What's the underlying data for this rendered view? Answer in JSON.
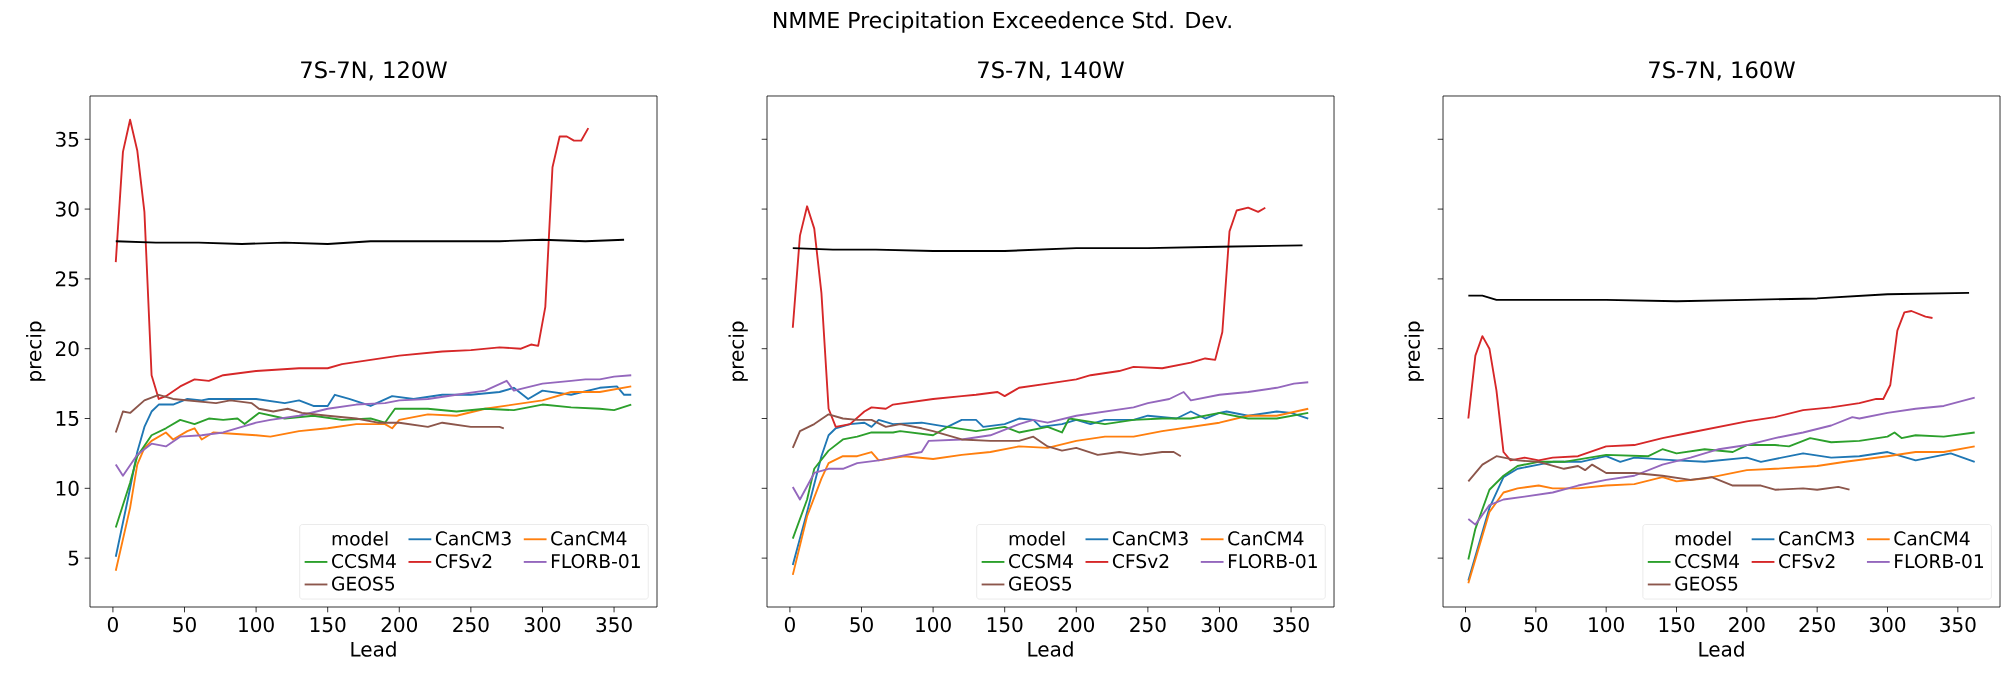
{
  "chart_data": [
    {
      "type": "other",
      "title": "NMME Precipitation Exceedence Std. Dev."
    },
    {
      "type": "line",
      "title": "7S-7N, 120W",
      "xlabel": "Lead",
      "ylabel": "precip",
      "legend_title": "model",
      "legend": "bottom right",
      "xlim": [
        -16,
        380
      ],
      "ylim": [
        1.5,
        38.1
      ],
      "xticks": [
        0,
        50,
        100,
        150,
        200,
        250,
        300,
        350
      ],
      "yticks": [
        5,
        10,
        15,
        20,
        25,
        30,
        35
      ],
      "series": [
        {
          "name": "CanCM3",
          "color": "#1f77b4",
          "x": [
            2,
            11,
            17,
            22,
            27,
            32,
            42,
            52,
            62,
            67,
            100,
            120,
            130,
            140,
            150,
            155,
            165,
            180,
            195,
            210,
            230,
            250,
            270,
            280,
            290,
            300,
            320,
            340,
            352,
            357,
            362
          ],
          "values": [
            5.1,
            9.5,
            12.6,
            14.4,
            15.5,
            16.0,
            16.0,
            16.4,
            16.3,
            16.4,
            16.4,
            16.1,
            16.3,
            15.9,
            15.9,
            16.7,
            16.4,
            15.9,
            16.6,
            16.4,
            16.7,
            16.7,
            16.9,
            17.2,
            16.4,
            17.0,
            16.7,
            17.2,
            17.3,
            16.7,
            16.7
          ]
        },
        {
          "name": "CanCM4",
          "color": "#ff7f0e",
          "x": [
            2,
            12,
            17,
            22,
            27,
            37,
            42,
            52,
            57,
            62,
            70,
            100,
            110,
            130,
            150,
            170,
            190,
            195,
            200,
            220,
            240,
            260,
            280,
            300,
            320,
            340,
            362
          ],
          "values": [
            4.1,
            8.6,
            11.7,
            12.9,
            13.4,
            14.0,
            13.5,
            14.1,
            14.3,
            13.5,
            14.0,
            13.8,
            13.7,
            14.1,
            14.3,
            14.6,
            14.6,
            14.3,
            14.9,
            15.3,
            15.2,
            15.7,
            16.0,
            16.3,
            16.9,
            16.9,
            17.3
          ]
        },
        {
          "name": "CCSM4",
          "color": "#2ca02c",
          "x": [
            2,
            12,
            17,
            27,
            37,
            47,
            57,
            67,
            77,
            87,
            92,
            102,
            120,
            140,
            160,
            180,
            190,
            197,
            220,
            240,
            260,
            280,
            300,
            320,
            340,
            350,
            362
          ],
          "values": [
            7.2,
            10.4,
            12.3,
            13.8,
            14.3,
            14.9,
            14.6,
            15.0,
            14.9,
            15.0,
            14.6,
            15.4,
            15.0,
            15.2,
            14.9,
            15.0,
            14.7,
            15.7,
            15.7,
            15.5,
            15.7,
            15.6,
            16.0,
            15.8,
            15.7,
            15.6,
            16.0
          ]
        },
        {
          "name": "CFSv2",
          "color": "#d62728",
          "x": [
            2,
            7,
            12,
            17,
            22,
            27,
            32,
            37,
            47,
            57,
            67,
            77,
            100,
            130,
            150,
            160,
            180,
            200,
            230,
            250,
            270,
            285,
            292,
            297,
            302,
            307,
            312,
            317,
            322,
            327,
            332
          ],
          "values": [
            26.2,
            34.1,
            36.4,
            34.2,
            29.8,
            18.1,
            16.4,
            16.6,
            17.3,
            17.8,
            17.7,
            18.1,
            18.4,
            18.6,
            18.6,
            18.9,
            19.2,
            19.5,
            19.8,
            19.9,
            20.1,
            20.0,
            20.3,
            20.2,
            23.0,
            33.0,
            35.2,
            35.2,
            34.9,
            34.9,
            35.8
          ]
        },
        {
          "name": "FLORB-01",
          "color": "#9467bd",
          "x": [
            2,
            7,
            17,
            27,
            37,
            47,
            62,
            77,
            90,
            100,
            110,
            130,
            150,
            170,
            190,
            200,
            220,
            240,
            260,
            275,
            280,
            300,
            320,
            330,
            340,
            350,
            362
          ],
          "values": [
            11.7,
            10.9,
            12.4,
            13.2,
            13.0,
            13.7,
            13.8,
            14.0,
            14.4,
            14.7,
            14.9,
            15.2,
            15.7,
            16.0,
            16.1,
            16.3,
            16.4,
            16.7,
            17.0,
            17.7,
            17.0,
            17.5,
            17.7,
            17.8,
            17.8,
            18.0,
            18.1
          ]
        },
        {
          "name": "GEOS5",
          "color": "#8c564b",
          "x": [
            2,
            7,
            12,
            22,
            32,
            42,
            52,
            72,
            82,
            97,
            102,
            112,
            122,
            132,
            150,
            170,
            185,
            200,
            220,
            230,
            250,
            270,
            273
          ],
          "values": [
            14.0,
            15.5,
            15.4,
            16.3,
            16.7,
            16.4,
            16.3,
            16.1,
            16.3,
            16.1,
            15.7,
            15.5,
            15.7,
            15.4,
            15.2,
            15.0,
            14.7,
            14.7,
            14.4,
            14.7,
            14.4,
            14.4,
            14.3
          ]
        },
        {
          "color": "#000000",
          "x": [
            2,
            30,
            60,
            90,
            120,
            150,
            180,
            210,
            240,
            270,
            300,
            330,
            357
          ],
          "values": [
            27.7,
            27.6,
            27.6,
            27.5,
            27.6,
            27.5,
            27.7,
            27.7,
            27.7,
            27.7,
            27.8,
            27.7,
            27.8
          ]
        }
      ]
    },
    {
      "type": "line",
      "title": "7S-7N, 140W",
      "xlabel": "Lead",
      "ylabel": "precip",
      "legend_title": "model",
      "legend": "bottom right",
      "tick_labels": "x",
      "xlim": [
        -16,
        380
      ],
      "ylim": [
        1.5,
        38.1
      ],
      "xticks": [
        0,
        50,
        100,
        150,
        200,
        250,
        300,
        350
      ],
      "yticks": [
        5,
        10,
        15,
        20,
        25,
        30,
        35
      ],
      "series": [
        {
          "name": "CanCM3",
          "color": "#1f77b4",
          "x": [
            2,
            12,
            22,
            27,
            32,
            42,
            52,
            57,
            62,
            72,
            92,
            110,
            120,
            130,
            135,
            150,
            160,
            170,
            175,
            190,
            200,
            210,
            220,
            240,
            250,
            270,
            280,
            290,
            300,
            305,
            320,
            340,
            350,
            362
          ],
          "values": [
            4.5,
            8.3,
            12.3,
            13.8,
            14.3,
            14.6,
            14.7,
            14.4,
            14.9,
            14.6,
            14.7,
            14.4,
            14.9,
            14.9,
            14.4,
            14.6,
            15.0,
            14.9,
            14.4,
            14.6,
            14.9,
            14.6,
            14.9,
            14.9,
            15.2,
            15.0,
            15.5,
            15.0,
            15.4,
            15.5,
            15.2,
            15.5,
            15.4,
            15.0
          ]
        },
        {
          "name": "CanCM4",
          "color": "#ff7f0e",
          "x": [
            2,
            12,
            22,
            27,
            37,
            47,
            57,
            62,
            80,
            100,
            120,
            140,
            160,
            180,
            200,
            220,
            240,
            260,
            280,
            300,
            320,
            340,
            362
          ],
          "values": [
            3.8,
            8.0,
            10.7,
            11.8,
            12.3,
            12.3,
            12.6,
            12.0,
            12.3,
            12.1,
            12.4,
            12.6,
            13.0,
            12.9,
            13.4,
            13.7,
            13.7,
            14.1,
            14.4,
            14.7,
            15.2,
            15.2,
            15.7
          ]
        },
        {
          "name": "CCSM4",
          "color": "#2ca02c",
          "x": [
            2,
            12,
            17,
            27,
            37,
            47,
            57,
            72,
            77,
            100,
            110,
            130,
            150,
            160,
            180,
            190,
            195,
            220,
            240,
            260,
            280,
            300,
            320,
            340,
            362
          ],
          "values": [
            6.4,
            9.2,
            11.4,
            12.7,
            13.5,
            13.7,
            14.0,
            14.0,
            14.1,
            13.8,
            14.4,
            14.1,
            14.4,
            14.0,
            14.4,
            14.0,
            15.0,
            14.6,
            14.9,
            15.0,
            15.0,
            15.4,
            15.0,
            15.0,
            15.4
          ]
        },
        {
          "name": "CFSv2",
          "color": "#d62728",
          "x": [
            2,
            7,
            12,
            17,
            22,
            27,
            32,
            42,
            52,
            57,
            67,
            72,
            100,
            120,
            130,
            145,
            150,
            160,
            180,
            200,
            210,
            230,
            240,
            260,
            280,
            290,
            297,
            302,
            307,
            312,
            320,
            327,
            332
          ],
          "values": [
            21.5,
            28.1,
            30.2,
            28.6,
            24.0,
            15.7,
            14.4,
            14.6,
            15.5,
            15.8,
            15.7,
            16.0,
            16.4,
            16.6,
            16.7,
            16.9,
            16.6,
            17.2,
            17.5,
            17.8,
            18.1,
            18.4,
            18.7,
            18.6,
            19.0,
            19.3,
            19.2,
            21.2,
            28.4,
            29.9,
            30.1,
            29.8,
            30.1
          ]
        },
        {
          "name": "FLORB-01",
          "color": "#9467bd",
          "x": [
            2,
            7,
            17,
            27,
            37,
            47,
            62,
            77,
            92,
            97,
            120,
            140,
            160,
            170,
            180,
            200,
            220,
            240,
            250,
            265,
            275,
            280,
            300,
            320,
            340,
            352,
            362
          ],
          "values": [
            10.1,
            9.2,
            11.1,
            11.4,
            11.4,
            11.8,
            12.0,
            12.3,
            12.6,
            13.4,
            13.5,
            13.8,
            14.6,
            14.9,
            14.7,
            15.2,
            15.5,
            15.8,
            16.1,
            16.4,
            16.9,
            16.3,
            16.7,
            16.9,
            17.2,
            17.5,
            17.6
          ]
        },
        {
          "name": "GEOS5",
          "color": "#8c564b",
          "x": [
            2,
            7,
            17,
            27,
            37,
            47,
            57,
            67,
            77,
            92,
            100,
            120,
            140,
            160,
            170,
            180,
            190,
            200,
            215,
            230,
            245,
            260,
            268,
            273
          ],
          "values": [
            12.9,
            14.1,
            14.6,
            15.3,
            15.0,
            14.9,
            14.9,
            14.4,
            14.6,
            14.3,
            14.1,
            13.5,
            13.4,
            13.4,
            13.7,
            13.0,
            12.7,
            12.9,
            12.4,
            12.6,
            12.4,
            12.6,
            12.6,
            12.3
          ]
        },
        {
          "color": "#000000",
          "x": [
            2,
            30,
            60,
            100,
            150,
            200,
            250,
            300,
            358
          ],
          "values": [
            27.2,
            27.1,
            27.1,
            27.0,
            27.0,
            27.2,
            27.2,
            27.3,
            27.4
          ]
        }
      ]
    },
    {
      "type": "line",
      "title": "7S-7N, 160W",
      "xlabel": "Lead",
      "ylabel": "precip",
      "legend_title": "model",
      "legend": "bottom right",
      "tick_labels": "x",
      "xlim": [
        -16,
        380
      ],
      "ylim": [
        1.5,
        38.1
      ],
      "xticks": [
        0,
        50,
        100,
        150,
        200,
        250,
        300,
        350
      ],
      "yticks": [
        5,
        10,
        15,
        20,
        25,
        30,
        35
      ],
      "series": [
        {
          "name": "CanCM3",
          "color": "#1f77b4",
          "x": [
            2,
            17,
            27,
            37,
            52,
            62,
            82,
            100,
            110,
            120,
            150,
            170,
            200,
            210,
            240,
            260,
            280,
            300,
            320,
            345,
            362
          ],
          "values": [
            3.4,
            8.6,
            10.8,
            11.4,
            11.7,
            11.9,
            11.9,
            12.3,
            11.9,
            12.2,
            12.0,
            11.9,
            12.2,
            11.9,
            12.5,
            12.2,
            12.3,
            12.6,
            12.0,
            12.5,
            11.9
          ]
        },
        {
          "name": "CanCM4",
          "color": "#ff7f0e",
          "x": [
            2,
            17,
            27,
            37,
            52,
            62,
            80,
            100,
            120,
            140,
            150,
            170,
            200,
            220,
            250,
            270,
            300,
            320,
            340,
            362
          ],
          "values": [
            3.2,
            8.3,
            9.7,
            10.0,
            10.2,
            10.0,
            10.0,
            10.2,
            10.3,
            10.8,
            10.5,
            10.7,
            11.3,
            11.4,
            11.6,
            11.9,
            12.3,
            12.6,
            12.6,
            13.0
          ]
        },
        {
          "name": "CCSM4",
          "color": "#2ca02c",
          "x": [
            2,
            7,
            17,
            27,
            37,
            52,
            70,
            100,
            130,
            140,
            150,
            170,
            190,
            200,
            220,
            230,
            245,
            260,
            280,
            300,
            305,
            310,
            320,
            340,
            362
          ],
          "values": [
            4.9,
            7.1,
            9.9,
            10.9,
            11.6,
            11.9,
            11.9,
            12.4,
            12.3,
            12.8,
            12.5,
            12.8,
            12.6,
            13.1,
            13.1,
            13.0,
            13.6,
            13.3,
            13.4,
            13.7,
            14.0,
            13.6,
            13.8,
            13.7,
            14.0
          ]
        },
        {
          "name": "CFSv2",
          "color": "#d62728",
          "x": [
            2,
            7,
            12,
            17,
            22,
            27,
            32,
            42,
            52,
            62,
            80,
            100,
            120,
            140,
            160,
            180,
            200,
            220,
            240,
            260,
            280,
            292,
            297,
            302,
            307,
            312,
            317,
            327,
            332
          ],
          "values": [
            15.0,
            19.5,
            20.9,
            20.0,
            17.0,
            12.6,
            12.0,
            12.2,
            12.0,
            12.2,
            12.3,
            13.0,
            13.1,
            13.6,
            14.0,
            14.4,
            14.8,
            15.1,
            15.6,
            15.8,
            16.1,
            16.4,
            16.4,
            17.4,
            21.3,
            22.6,
            22.7,
            22.3,
            22.2
          ]
        },
        {
          "name": "FLORB-01",
          "color": "#9467bd",
          "x": [
            2,
            7,
            17,
            27,
            42,
            62,
            80,
            100,
            120,
            140,
            160,
            180,
            200,
            220,
            240,
            260,
            275,
            280,
            300,
            320,
            340,
            362
          ],
          "values": [
            7.8,
            7.4,
            8.8,
            9.2,
            9.4,
            9.7,
            10.2,
            10.6,
            10.9,
            11.7,
            12.2,
            12.8,
            13.1,
            13.6,
            14.0,
            14.5,
            15.1,
            15.0,
            15.4,
            15.7,
            15.9,
            16.5
          ]
        },
        {
          "name": "GEOS5",
          "color": "#8c564b",
          "x": [
            2,
            12,
            22,
            37,
            52,
            70,
            80,
            85,
            90,
            100,
            120,
            140,
            160,
            175,
            190,
            210,
            220,
            240,
            250,
            265,
            273
          ],
          "values": [
            10.5,
            11.7,
            12.3,
            12.0,
            11.9,
            11.4,
            11.6,
            11.3,
            11.7,
            11.1,
            11.1,
            10.9,
            10.6,
            10.8,
            10.2,
            10.2,
            9.9,
            10.0,
            9.9,
            10.1,
            9.9
          ]
        },
        {
          "color": "#000000",
          "x": [
            2,
            12,
            22,
            50,
            100,
            150,
            200,
            250,
            300,
            358
          ],
          "values": [
            23.8,
            23.8,
            23.5,
            23.5,
            23.5,
            23.4,
            23.5,
            23.6,
            23.9,
            24.0
          ]
        }
      ]
    }
  ]
}
